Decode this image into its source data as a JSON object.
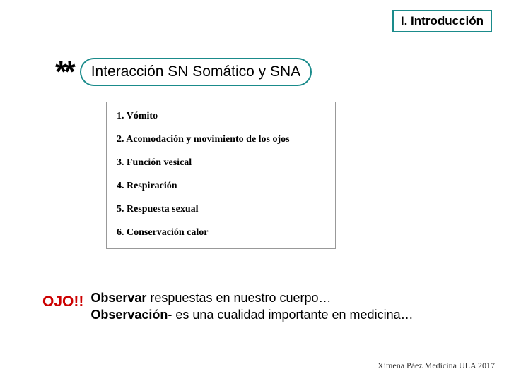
{
  "header": {
    "section_label": "I. Introducción",
    "border_color": "#1a8b8b",
    "font_size": 17
  },
  "title": {
    "marker": "**",
    "text": "Interacción SN Somático y SNA",
    "border_color": "#1a8b8b",
    "font_size": 21
  },
  "list": {
    "border_color": "#999999",
    "items": [
      "1.  Vómito",
      "2.  Acomodación y movimiento de los ojos",
      "3.  Función vesical",
      "4.  Respiración",
      "5.  Respuesta sexual",
      "6.  Conservación calor"
    ],
    "font_size": 14
  },
  "callout": {
    "label": "OJO!!",
    "label_color": "#cc0000",
    "line1_bold": "Observar",
    "line1_rest": " respuestas en nuestro cuerpo…",
    "line2_bold": "Observación",
    "line2_rest": "- es una cualidad importante en medicina…",
    "font_size": 18
  },
  "footer": {
    "text": "Ximena Páez Medicina ULA 2017",
    "font_size": 12
  },
  "background_color": "#ffffff"
}
